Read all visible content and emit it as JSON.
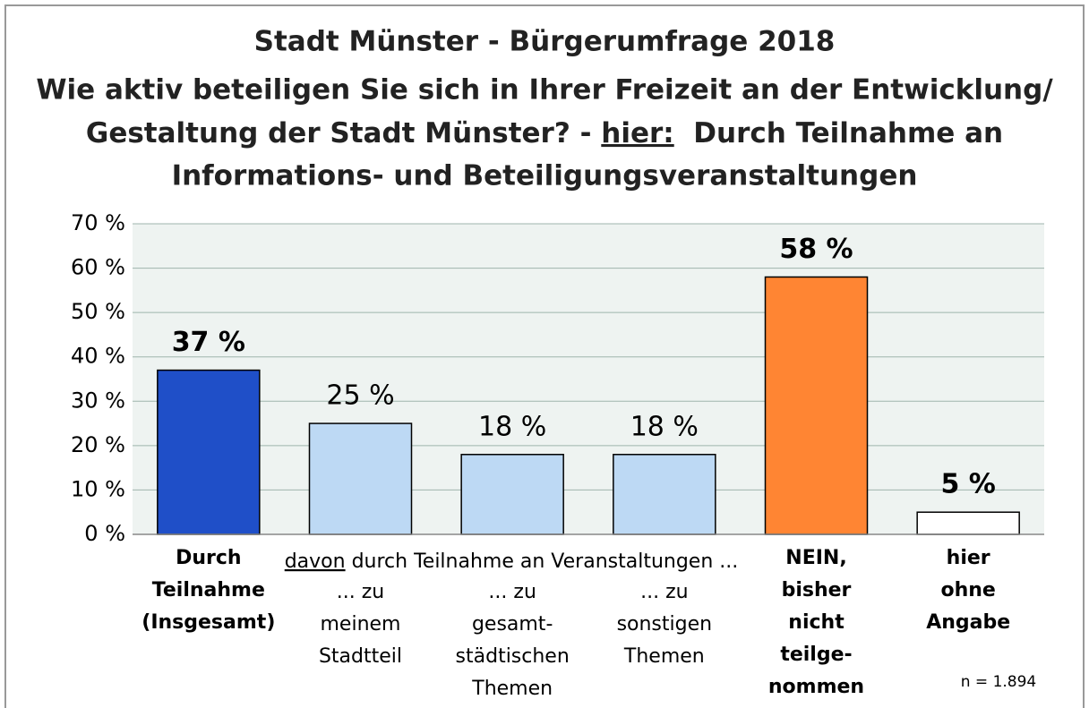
{
  "chart_data": {
    "type": "bar",
    "title": [
      "Stadt Münster  - Bürgerumfrage 2018",
      "Wie aktiv beteiligen Sie sich in Ihrer Freizeit an der Entwicklung/",
      [
        "Gestaltung der Stadt Münster? - ",
        "hier:",
        "  Durch Teilnahme an"
      ],
      "Informations- und Beteiligungsveranstaltungen"
    ],
    "categories": [
      [
        "Durch",
        "Teilnahme",
        "(Insgesamt)"
      ],
      [
        "... zu",
        "meinem",
        "Stadtteil"
      ],
      [
        "... zu",
        "gesamt-",
        "städtischen",
        "Themen"
      ],
      [
        "... zu",
        "sonstigen",
        "Themen"
      ],
      [
        "NEIN,",
        "bisher",
        "nicht",
        "teilge-",
        "nommen"
      ],
      [
        "hier",
        "ohne",
        "Angabe"
      ]
    ],
    "group_label": [
      "davon",
      " durch Teilnahme an Veranstaltungen ..."
    ],
    "values": [
      37,
      25,
      18,
      18,
      58,
      5
    ],
    "value_labels": [
      "37 %",
      "25 %",
      "18 %",
      "18 %",
      "58 %",
      "5 %"
    ],
    "colors": [
      "#1f4fc8",
      "#bdd9f4",
      "#bdd9f4",
      "#bdd9f4",
      "#ff8533",
      "#ffffff"
    ],
    "bold": [
      true,
      false,
      false,
      false,
      true,
      true
    ],
    "ylim": [
      0,
      70
    ],
    "yticks": [
      {
        "value": 0,
        "label": "0 %"
      },
      {
        "value": 10,
        "label": "10 %"
      },
      {
        "value": 20,
        "label": "20 %"
      },
      {
        "value": 30,
        "label": "30 %"
      },
      {
        "value": 40,
        "label": "40 %"
      },
      {
        "value": 50,
        "label": "50 %"
      },
      {
        "value": 60,
        "label": "60 %"
      },
      {
        "value": 70,
        "label": "70 %"
      }
    ],
    "grid": true,
    "annotation": "n = 1.894"
  }
}
